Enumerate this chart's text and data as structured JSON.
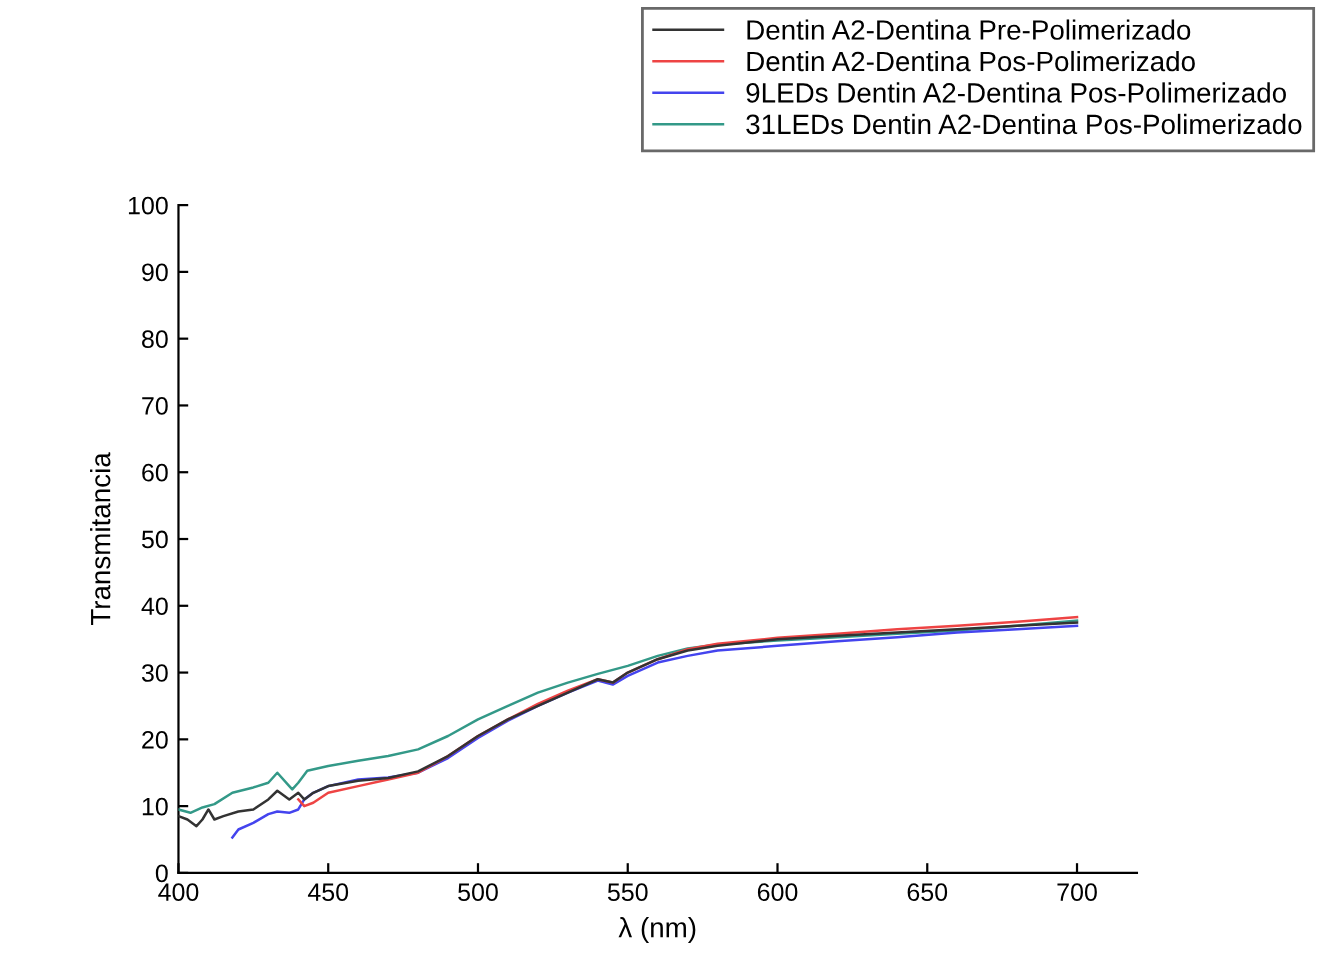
{
  "chart_data": {
    "type": "line",
    "xlabel": "λ (nm)",
    "ylabel": "Transmitancia",
    "xlim": [
      400,
      720
    ],
    "xticks": [
      400,
      450,
      500,
      550,
      600,
      650,
      700
    ],
    "ylim": [
      0,
      100
    ],
    "yticks": [
      0,
      10,
      20,
      30,
      40,
      50,
      60,
      70,
      80,
      90,
      100
    ],
    "grid": false,
    "legend": "top right",
    "marker": "none",
    "line_style": "solid",
    "series": [
      {
        "name": "Dentin A2-Dentina Pre-Polimerizado",
        "color": "#333333",
        "x": [
          400,
          403,
          406,
          408,
          410,
          412,
          415,
          420,
          425,
          430,
          433,
          437,
          440,
          442,
          445,
          450,
          460,
          470,
          480,
          490,
          500,
          510,
          520,
          530,
          540,
          545,
          550,
          560,
          570,
          580,
          600,
          620,
          640,
          660,
          680,
          700
        ],
        "values": [
          8.5,
          8,
          7,
          8,
          9.5,
          8,
          8.5,
          9.2,
          9.5,
          11,
          12.3,
          11,
          12,
          11,
          12,
          13,
          13.8,
          14.2,
          15.2,
          17.5,
          20.5,
          23,
          25,
          27,
          29,
          28.5,
          30,
          32,
          33.3,
          34,
          35,
          35.5,
          36,
          36.5,
          37,
          37.5
        ]
      },
      {
        "name": "Dentin A2-Dentina Pos-Polimerizado",
        "color": "#ee4444",
        "x": [
          440,
          442,
          445,
          450,
          460,
          470,
          480,
          490,
          500,
          510,
          520,
          530,
          540,
          545,
          550,
          560,
          570,
          580,
          600,
          620,
          640,
          660,
          680,
          700
        ],
        "values": [
          11,
          10,
          10.5,
          12,
          13,
          14,
          15,
          17.5,
          20.5,
          23,
          25.3,
          27.3,
          29,
          28.5,
          30,
          32,
          33.5,
          34.3,
          35.2,
          35.8,
          36.5,
          37,
          37.6,
          38.3
        ]
      },
      {
        "name": "9LEDs Dentin A2-Dentina Pos-Polimerizado",
        "color": "#4444ee",
        "x": [
          418,
          420,
          425,
          430,
          433,
          437,
          440,
          442,
          445,
          450,
          460,
          470,
          480,
          490,
          500,
          510,
          520,
          530,
          540,
          545,
          550,
          560,
          570,
          580,
          600,
          620,
          640,
          660,
          680,
          700
        ],
        "values": [
          5.3,
          6.5,
          7.5,
          8.8,
          9.2,
          9,
          9.5,
          11,
          12,
          13,
          14,
          14.3,
          15,
          17.2,
          20.2,
          22.8,
          25,
          27,
          28.8,
          28.2,
          29.5,
          31.5,
          32.5,
          33.3,
          34,
          34.7,
          35.3,
          36,
          36.5,
          37
        ]
      },
      {
        "name": "31LEDs Dentin A2-Dentina Pos-Polimerizado",
        "color": "#339988",
        "x": [
          400,
          404,
          408,
          412,
          418,
          425,
          430,
          433,
          437,
          438,
          440,
          443,
          450,
          460,
          470,
          480,
          490,
          500,
          510,
          520,
          530,
          540,
          550,
          560,
          570,
          580,
          600,
          620,
          640,
          660,
          680,
          700
        ],
        "values": [
          9.5,
          9,
          9.8,
          10.3,
          12,
          12.8,
          13.5,
          15,
          13,
          12.5,
          13.5,
          15.3,
          16,
          16.8,
          17.5,
          18.5,
          20.5,
          23,
          25,
          27,
          28.5,
          29.8,
          31,
          32.5,
          33.6,
          34.2,
          34.8,
          35.3,
          35.8,
          36.3,
          37,
          37.8
        ]
      }
    ]
  }
}
